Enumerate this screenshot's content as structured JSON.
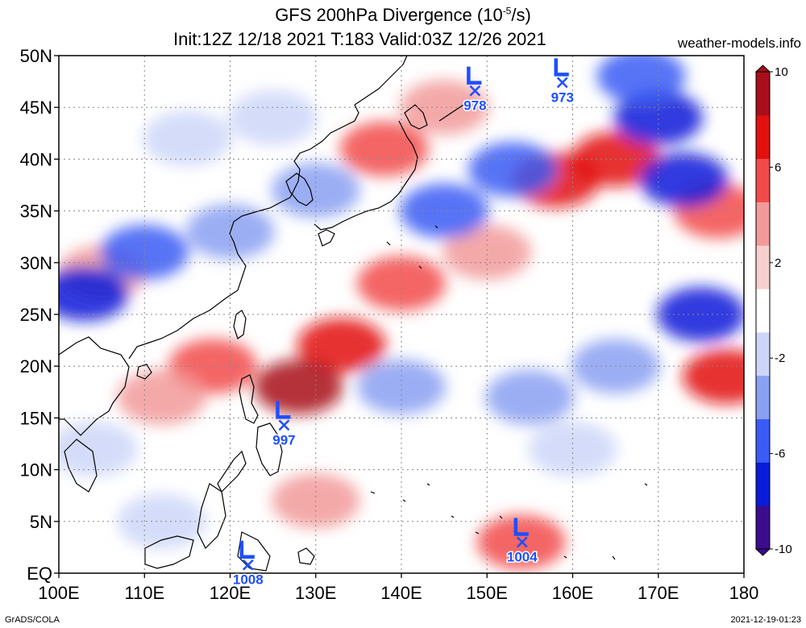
{
  "title": {
    "line1": "GFS 200hPa Divergence (10",
    "line1_exp": "-5",
    "line1_end": "/s)",
    "line2": "Init:12Z 12/18 2021 T:183 Valid:03Z 12/26 2021"
  },
  "site": "weather-models.info",
  "footer_left": "GrADS/COLA",
  "footer_right": "2021-12-19-01:23",
  "map": {
    "lon_range": [
      100,
      180
    ],
    "lat_range": [
      0,
      50
    ],
    "lat_ticks": [
      {
        "value": 50,
        "label": "50N"
      },
      {
        "value": 45,
        "label": "45N"
      },
      {
        "value": 40,
        "label": "40N"
      },
      {
        "value": 35,
        "label": "35N"
      },
      {
        "value": 30,
        "label": "30N"
      },
      {
        "value": 25,
        "label": "25N"
      },
      {
        "value": 20,
        "label": "20N"
      },
      {
        "value": 15,
        "label": "15N"
      },
      {
        "value": 10,
        "label": "10N"
      },
      {
        "value": 5,
        "label": "5N"
      },
      {
        "value": 0,
        "label": "EQ"
      }
    ],
    "lon_ticks": [
      {
        "value": 100,
        "label": "100E"
      },
      {
        "value": 110,
        "label": "110E"
      },
      {
        "value": 120,
        "label": "120E"
      },
      {
        "value": 130,
        "label": "130E"
      },
      {
        "value": 140,
        "label": "140E"
      },
      {
        "value": 150,
        "label": "150E"
      },
      {
        "value": 160,
        "label": "160E"
      },
      {
        "value": 170,
        "label": "170E"
      },
      {
        "value": 180,
        "label": "180"
      }
    ],
    "grid": true
  },
  "colorbar": {
    "ticks": [
      {
        "value": 10,
        "label": "10"
      },
      {
        "value": 6,
        "label": "6"
      },
      {
        "value": 2,
        "label": "2"
      },
      {
        "value": -2,
        "label": "-2"
      },
      {
        "value": -6,
        "label": "-6"
      },
      {
        "value": -10,
        "label": "-10"
      }
    ],
    "colors": [
      "#3b0c8c",
      "#0a1bd9",
      "#3a5cf5",
      "#8aa0f2",
      "#cdd6f8",
      "#ffffff",
      "#f7cfcf",
      "#f29a9a",
      "#f24a4a",
      "#e31010",
      "#a80f1a"
    ]
  },
  "lows": [
    {
      "lon": 148.6,
      "lat": 46.6,
      "label": "978"
    },
    {
      "lon": 158.8,
      "lat": 47.4,
      "label": "973"
    },
    {
      "lon": 126.3,
      "lat": 14.3,
      "label": "997"
    },
    {
      "lon": 154.1,
      "lat": 3.0,
      "label": "1004"
    },
    {
      "lon": 122.1,
      "lat": 0.8,
      "label": "1008"
    }
  ],
  "field_features": [
    {
      "lon": 165,
      "lat": 40,
      "value": 7
    },
    {
      "lon": 158,
      "lat": 38,
      "value": 8
    },
    {
      "lon": 133,
      "lat": 22,
      "value": 8
    },
    {
      "lon": 128,
      "lat": 18,
      "value": 9
    },
    {
      "lon": 140,
      "lat": 28,
      "value": 5
    },
    {
      "lon": 150,
      "lat": 31,
      "value": 4
    },
    {
      "lon": 118,
      "lat": 20,
      "value": 5
    },
    {
      "lon": 112,
      "lat": 17,
      "value": 4
    },
    {
      "lon": 154,
      "lat": 3,
      "value": 6
    },
    {
      "lon": 178,
      "lat": 19,
      "value": 8
    },
    {
      "lon": 177,
      "lat": 35,
      "value": 6
    },
    {
      "lon": 130,
      "lat": 7,
      "value": 4
    },
    {
      "lon": 105,
      "lat": 29,
      "value": 4
    },
    {
      "lon": 173,
      "lat": 38,
      "value": -9
    },
    {
      "lon": 170,
      "lat": 44,
      "value": -9
    },
    {
      "lon": 175,
      "lat": 25,
      "value": -9
    },
    {
      "lon": 168,
      "lat": 48,
      "value": -6
    },
    {
      "lon": 103,
      "lat": 27,
      "value": -8
    },
    {
      "lon": 110,
      "lat": 31,
      "value": -6
    },
    {
      "lon": 120,
      "lat": 33,
      "value": -5
    },
    {
      "lon": 130,
      "lat": 37,
      "value": -5
    },
    {
      "lon": 145,
      "lat": 35,
      "value": -6
    },
    {
      "lon": 153,
      "lat": 39,
      "value": -7
    },
    {
      "lon": 115,
      "lat": 42,
      "value": -3
    },
    {
      "lon": 140,
      "lat": 18,
      "value": -4
    },
    {
      "lon": 155,
      "lat": 17,
      "value": -4
    },
    {
      "lon": 165,
      "lat": 20,
      "value": -4
    },
    {
      "lon": 160,
      "lat": 12,
      "value": -3
    },
    {
      "lon": 112,
      "lat": 5,
      "value": -3
    },
    {
      "lon": 125,
      "lat": 44,
      "value": -3
    },
    {
      "lon": 104,
      "lat": 12,
      "value": -3
    },
    {
      "lon": 145,
      "lat": 45,
      "value": 4
    },
    {
      "lon": 138,
      "lat": 41,
      "value": 5
    }
  ]
}
